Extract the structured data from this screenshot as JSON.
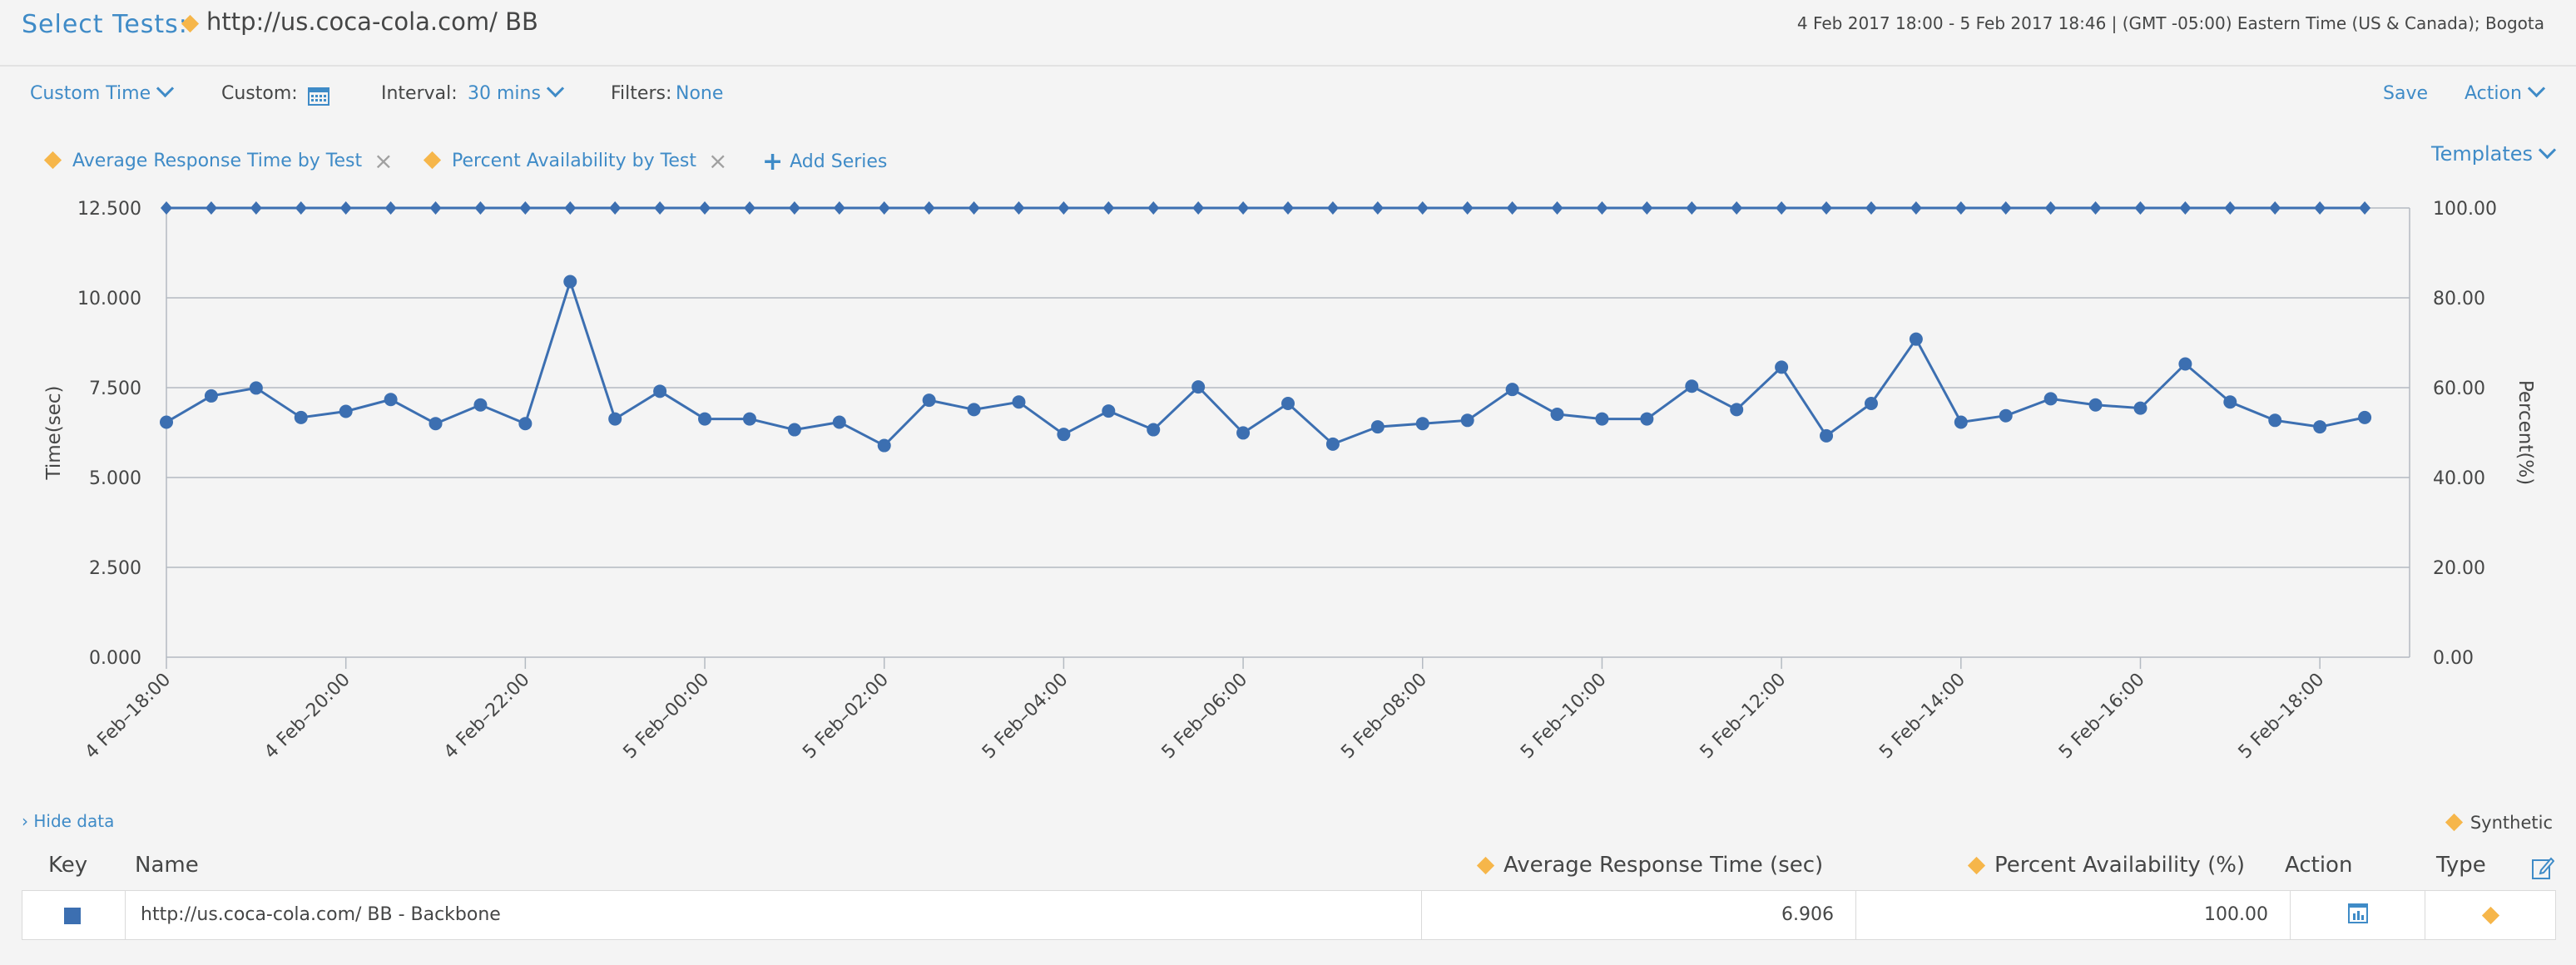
{
  "header": {
    "title_label": "Select Tests:",
    "test_name": "http://us.coca-cola.com/ BB",
    "time_range": "4 Feb 2017 18:00 - 5 Feb 2017 18:46  | (GMT -05:00) Eastern Time (US & Canada); Bogota"
  },
  "controls": {
    "time_mode": "Custom Time",
    "custom_label": "Custom:",
    "interval_label": "Interval:",
    "interval_value": "30 mins",
    "filters_label": "Filters:",
    "filters_value": "None",
    "save": "Save",
    "action": "Action",
    "templates": "Templates"
  },
  "series_bar": {
    "series": [
      "Average Response Time by Test",
      "Percent Availability by Test"
    ],
    "add_series": "Add Series",
    "diamond_color": "#f6b64a"
  },
  "chart_data": {
    "type": "line",
    "ylabel": "Time(sec)",
    "y2label": "Percent(%)",
    "ylim": [
      0,
      12.5
    ],
    "y2lim": [
      0,
      100
    ],
    "yticks": [
      "0.000",
      "2.500",
      "5.000",
      "7.500",
      "10.000",
      "12.500"
    ],
    "y2ticks": [
      "0.00",
      "20.00",
      "40.00",
      "60.00",
      "80.00",
      "100.00"
    ],
    "xticks": [
      "4 Feb–18:00",
      "4 Feb–20:00",
      "4 Feb–22:00",
      "5 Feb–00:00",
      "5 Feb–02:00",
      "5 Feb–04:00",
      "5 Feb–06:00",
      "5 Feb–08:00",
      "5 Feb–10:00",
      "5 Feb–12:00",
      "5 Feb–14:00",
      "5 Feb–16:00",
      "5 Feb–18:00"
    ],
    "grid": true,
    "line_color": "#3c6fb1",
    "series": [
      {
        "axis": "left",
        "marker": "circle",
        "values": [
          6.54,
          7.27,
          7.49,
          6.67,
          6.84,
          7.17,
          6.5,
          7.02,
          6.5,
          10.45,
          6.63,
          7.4,
          6.63,
          6.63,
          6.33,
          6.54,
          5.89,
          7.15,
          6.89,
          7.1,
          6.2,
          6.85,
          6.33,
          7.52,
          6.24,
          7.06,
          5.93,
          6.41,
          6.5,
          6.59,
          7.45,
          6.76,
          6.63,
          6.63,
          7.54,
          6.89,
          8.07,
          6.16,
          7.06,
          8.85,
          6.54,
          6.72,
          7.19,
          7.02,
          6.93,
          8.16,
          7.1,
          6.59,
          6.41,
          6.67
        ]
      },
      {
        "axis": "right",
        "marker": "diamond",
        "values": [
          100,
          100,
          100,
          100,
          100,
          100,
          100,
          100,
          100,
          100,
          100,
          100,
          100,
          100,
          100,
          100,
          100,
          100,
          100,
          100,
          100,
          100,
          100,
          100,
          100,
          100,
          100,
          100,
          100,
          100,
          100,
          100,
          100,
          100,
          100,
          100,
          100,
          100,
          100,
          100,
          100,
          100,
          100,
          100,
          100,
          100,
          100,
          100,
          100,
          100
        ]
      }
    ]
  },
  "data_table": {
    "hide_data": "› Hide data",
    "legend_label": "Synthetic",
    "columns": {
      "key": "Key",
      "name": "Name",
      "avg": "Average Response Time (sec)",
      "pct": "Percent Availability (%)",
      "action": "Action",
      "type": "Type"
    },
    "rows": [
      {
        "name": "http://us.coca-cola.com/ BB - Backbone",
        "avg": "6.906",
        "pct": "100.00",
        "key_color": "#3c6fb1"
      }
    ]
  }
}
